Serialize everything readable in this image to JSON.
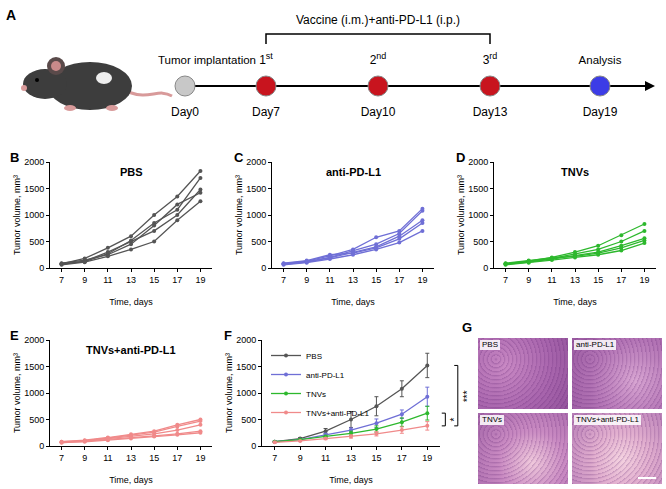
{
  "timeline": {
    "panel": "A",
    "bracket_label": "Vaccine (i.m.)+anti-PD-L1 (i.p.)",
    "events": [
      {
        "day": "Day0",
        "label": "Tumor implantation",
        "color": "#c8c8c8"
      },
      {
        "day": "Day7",
        "label": "1st",
        "color": "#c8141e"
      },
      {
        "day": "Day10",
        "label": "2nd",
        "color": "#c8141e"
      },
      {
        "day": "Day13",
        "label": "3rd",
        "color": "#c8141e"
      },
      {
        "day": "Day19",
        "label": "Analysis",
        "color": "#3c3ce6"
      }
    ]
  },
  "chart_data": [
    {
      "panel": "B",
      "type": "line",
      "title": "PBS",
      "x_label": "Time, days",
      "y_label": "Tumor volume, mm³",
      "x": [
        7,
        9,
        11,
        13,
        15,
        17,
        19
      ],
      "xlim": [
        6,
        20
      ],
      "xticks": [
        7,
        9,
        11,
        13,
        15,
        17,
        19
      ],
      "ylim": [
        0,
        2000
      ],
      "yticks": [
        0,
        500,
        1000,
        1500,
        2000
      ],
      "grid": false,
      "color": "#555555",
      "marker": "circle",
      "line_style": "solid",
      "series": [
        {
          "values": [
            80,
            180,
            380,
            600,
            1000,
            1350,
            1830
          ]
        },
        {
          "values": [
            80,
            120,
            270,
            520,
            850,
            1100,
            1700
          ]
        },
        {
          "values": [
            70,
            130,
            300,
            500,
            700,
            1000,
            1480
          ]
        },
        {
          "values": [
            90,
            150,
            250,
            450,
            800,
            1200,
            1420
          ]
        },
        {
          "values": [
            60,
            110,
            220,
            350,
            500,
            900,
            1260
          ]
        }
      ]
    },
    {
      "panel": "C",
      "type": "line",
      "title": "anti-PD-L1",
      "x_label": "Time, days",
      "y_label": "Tumor volume, mm³",
      "x": [
        7,
        9,
        11,
        13,
        15,
        17,
        19
      ],
      "xlim": [
        6,
        20
      ],
      "xticks": [
        7,
        9,
        11,
        13,
        15,
        17,
        19
      ],
      "ylim": [
        0,
        2000
      ],
      "yticks": [
        0,
        500,
        1000,
        1500,
        2000
      ],
      "grid": false,
      "color": "#6f6fd6",
      "marker": "circle",
      "line_style": "solid",
      "series": [
        {
          "values": [
            80,
            130,
            230,
            350,
            580,
            700,
            1120
          ]
        },
        {
          "values": [
            80,
            120,
            200,
            330,
            450,
            650,
            1080
          ]
        },
        {
          "values": [
            70,
            110,
            190,
            300,
            400,
            600,
            900
          ]
        },
        {
          "values": [
            90,
            140,
            250,
            280,
            380,
            550,
            850
          ]
        },
        {
          "values": [
            60,
            100,
            170,
            250,
            350,
            480,
            700
          ]
        }
      ]
    },
    {
      "panel": "D",
      "type": "line",
      "title": "TNVs",
      "x_label": "Time, days",
      "y_label": "Tumor volume, mm³",
      "x": [
        7,
        9,
        11,
        13,
        15,
        17,
        19
      ],
      "xlim": [
        6,
        20
      ],
      "xticks": [
        7,
        9,
        11,
        13,
        15,
        17,
        19
      ],
      "ylim": [
        0,
        2000
      ],
      "yticks": [
        0,
        500,
        1000,
        1500,
        2000
      ],
      "grid": false,
      "color": "#2db82d",
      "marker": "circle",
      "line_style": "solid",
      "series": [
        {
          "values": [
            80,
            130,
            200,
            300,
            420,
            620,
            830
          ]
        },
        {
          "values": [
            80,
            120,
            180,
            260,
            350,
            500,
            700
          ]
        },
        {
          "values": [
            70,
            110,
            170,
            230,
            300,
            420,
            560
          ]
        },
        {
          "values": [
            90,
            140,
            190,
            220,
            280,
            380,
            520
          ]
        },
        {
          "values": [
            60,
            100,
            150,
            200,
            250,
            330,
            470
          ]
        }
      ]
    },
    {
      "panel": "E",
      "type": "line",
      "title": "TNVs+anti-PD-L1",
      "x_label": "Time, days",
      "y_label": "Tumor volume, mm³",
      "x": [
        7,
        9,
        11,
        13,
        15,
        17,
        19
      ],
      "xlim": [
        6,
        20
      ],
      "xticks": [
        7,
        9,
        11,
        13,
        15,
        17,
        19
      ],
      "ylim": [
        0,
        2000
      ],
      "yticks": [
        0,
        500,
        1000,
        1500,
        2000
      ],
      "grid": false,
      "color": "#f08a8a",
      "marker": "circle",
      "line_style": "solid",
      "series": [
        {
          "values": [
            80,
            110,
            160,
            220,
            280,
            400,
            500
          ]
        },
        {
          "values": [
            70,
            100,
            150,
            200,
            260,
            370,
            470
          ]
        },
        {
          "values": [
            80,
            100,
            140,
            190,
            230,
            300,
            400
          ]
        },
        {
          "values": [
            60,
            90,
            120,
            160,
            190,
            230,
            280
          ]
        },
        {
          "values": [
            70,
            80,
            110,
            140,
            180,
            210,
            250
          ]
        }
      ]
    },
    {
      "panel": "F",
      "type": "line",
      "x_label": "Time, days",
      "y_label": "Tumor volume, mm³",
      "x": [
        7,
        9,
        11,
        13,
        15,
        17,
        19
      ],
      "xlim": [
        6,
        20
      ],
      "xticks": [
        7,
        9,
        11,
        13,
        15,
        17,
        19
      ],
      "ylim": [
        0,
        2000
      ],
      "yticks": [
        0,
        500,
        1000,
        1500,
        2000
      ],
      "grid": false,
      "legend": "top left",
      "marker": "circle",
      "line_style": "solid",
      "series": [
        {
          "name": "PBS",
          "color": "#555555",
          "values": [
            80,
            140,
            280,
            500,
            750,
            1080,
            1520
          ],
          "errors": [
            10,
            20,
            50,
            150,
            180,
            150,
            230
          ]
        },
        {
          "name": "anti-PD-L1",
          "color": "#6f6fd6",
          "values": [
            80,
            120,
            210,
            300,
            430,
            600,
            930
          ],
          "errors": [
            10,
            15,
            30,
            40,
            80,
            80,
            180
          ]
        },
        {
          "name": "TNVs",
          "color": "#2db82d",
          "values": [
            80,
            120,
            180,
            240,
            320,
            450,
            620
          ],
          "errors": [
            10,
            15,
            20,
            40,
            60,
            80,
            130
          ]
        },
        {
          "name": "TNVs+anti-PD-L1",
          "color": "#f08a8a",
          "values": [
            70,
            95,
            140,
            180,
            230,
            300,
            380
          ],
          "errors": [
            10,
            10,
            20,
            30,
            40,
            60,
            80
          ]
        }
      ],
      "significance": [
        {
          "series": [
            "TNVs",
            "TNVs+anti-PD-L1"
          ],
          "label": "*"
        },
        {
          "series": [
            "PBS",
            "TNVs+anti-PD-L1"
          ],
          "label": "***"
        }
      ]
    }
  ],
  "histology": {
    "panel": "G",
    "images": [
      "PBS",
      "anti-PD-L1",
      "TNVs",
      "TNVs+anti-PD-L1"
    ]
  }
}
